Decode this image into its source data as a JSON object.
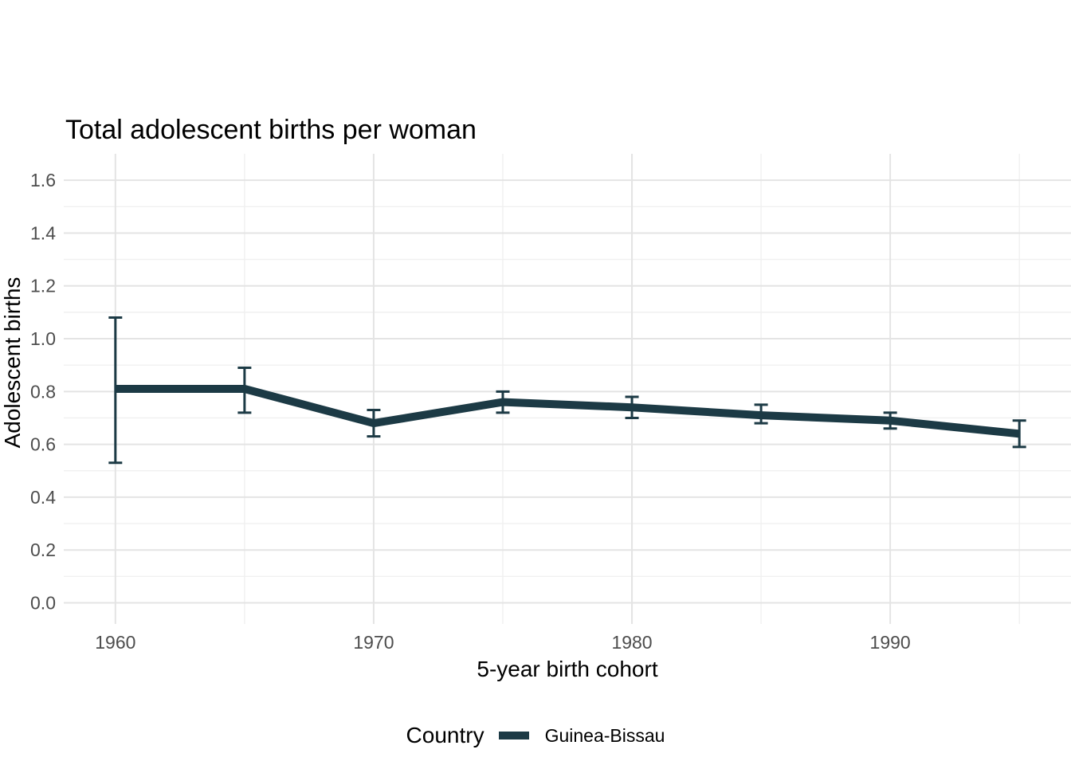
{
  "page": {
    "background": "#ffffff"
  },
  "chart_data": {
    "type": "line",
    "title": "Total adolescent births per woman",
    "xlabel": "5-year birth cohort",
    "ylabel": "Adolescent births",
    "x": [
      1960,
      1965,
      1970,
      1975,
      1980,
      1985,
      1990,
      1995
    ],
    "series": [
      {
        "name": "Guinea-Bissau",
        "color": "#1c3a45",
        "values": [
          0.81,
          0.81,
          0.68,
          0.76,
          0.74,
          0.71,
          0.69,
          0.64
        ],
        "ymin": [
          0.53,
          0.72,
          0.63,
          0.72,
          0.7,
          0.68,
          0.66,
          0.59
        ],
        "ymax": [
          1.08,
          0.89,
          0.73,
          0.8,
          0.78,
          0.75,
          0.72,
          0.69
        ]
      }
    ],
    "error_bars": true,
    "xlim": [
      1958,
      1997
    ],
    "ylim": [
      -0.08,
      1.7
    ],
    "x_ticks": {
      "values": [
        1960,
        1970,
        1980,
        1990
      ],
      "labels": [
        "1960",
        "1970",
        "1980",
        "1990"
      ],
      "minor": [
        1965,
        1975,
        1985,
        1995
      ]
    },
    "y_ticks": {
      "values": [
        0.0,
        0.2,
        0.4,
        0.6,
        0.8,
        1.0,
        1.2,
        1.4,
        1.6
      ],
      "labels": [
        "0.0",
        "0.2",
        "0.4",
        "0.6",
        "0.8",
        "1.0",
        "1.2",
        "1.4",
        "1.6"
      ],
      "minor": [
        0.1,
        0.3,
        0.5,
        0.7,
        0.9,
        1.1,
        1.3,
        1.5
      ]
    },
    "grid": {
      "on": true,
      "major_color": "#e4e4e4",
      "minor_color": "#f0f0f0"
    },
    "tick_label_color": "#4d4d4d",
    "legend": {
      "position": "bottom",
      "title": "Country",
      "entries": [
        {
          "label": "Guinea-Bissau",
          "color": "#1c3a45"
        }
      ]
    }
  }
}
